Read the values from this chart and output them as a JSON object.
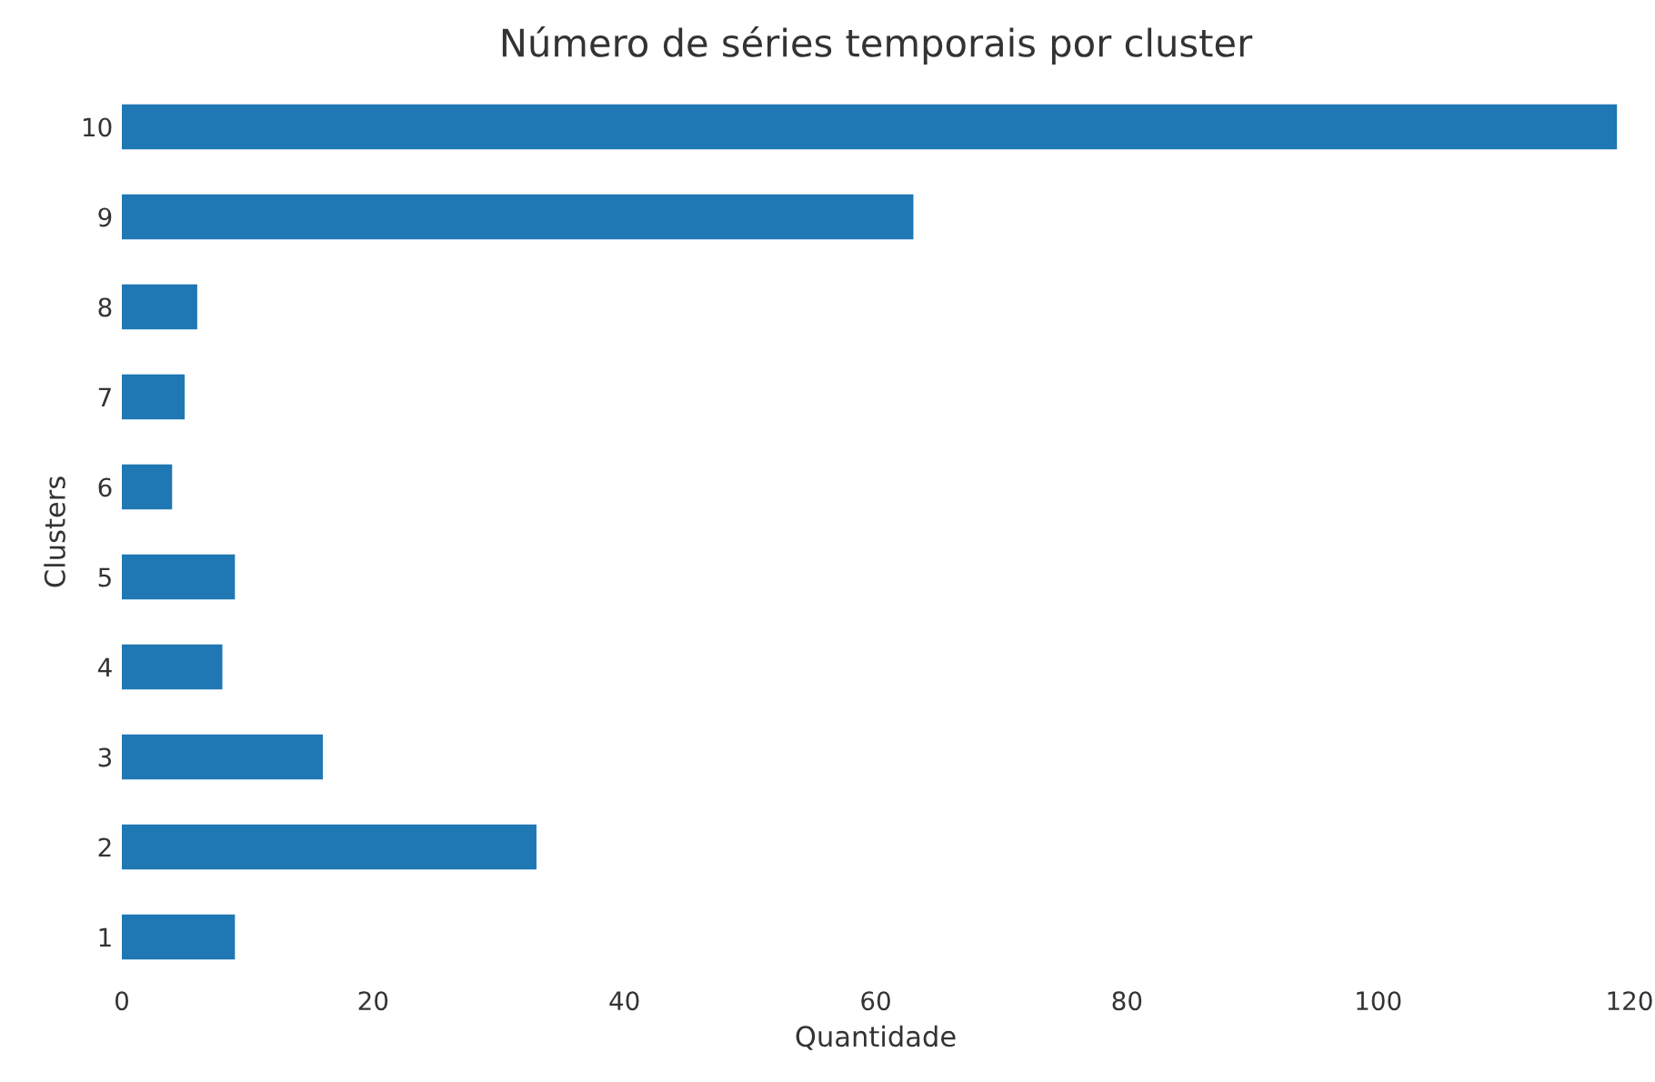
{
  "chart_data": {
    "type": "bar",
    "orientation": "horizontal",
    "title": "Número de séries temporais por cluster",
    "xlabel": "Quantidade",
    "ylabel": "Clusters",
    "categories": [
      "10",
      "9",
      "8",
      "7",
      "6",
      "5",
      "4",
      "3",
      "2",
      "1"
    ],
    "values": [
      119,
      63,
      6,
      5,
      4,
      9,
      8,
      16,
      33,
      9
    ],
    "color": "#1f77b4",
    "xlim": [
      0,
      120
    ],
    "xticks": [
      0,
      20,
      40,
      60,
      80,
      100,
      120
    ],
    "grid": false,
    "legend": false
  }
}
